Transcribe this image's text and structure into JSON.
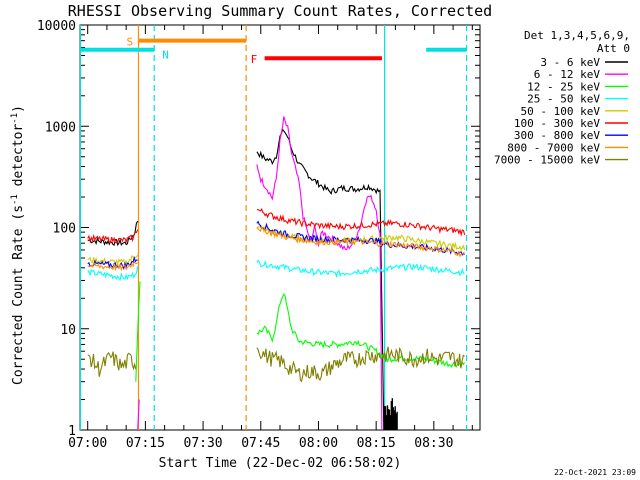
{
  "chart_data": {
    "type": "line",
    "title": "RHESSI Observing Summary Count Rates, Corrected",
    "xlabel": "Start Time (22-Dec-02 06:58:02)",
    "ylabel_main": "Corrected Count Rate (s",
    "ylabel_unit_a": "-1",
    "ylabel_mid": " detector",
    "ylabel_unit_b": "-1",
    "ylabel_end": ")",
    "y_scale": "log",
    "ylim": [
      1,
      10000
    ],
    "xlim_minutes_from_0700": [
      -2,
      102
    ],
    "x_ticks": [
      {
        "m": 0,
        "label": "07:00"
      },
      {
        "m": 15,
        "label": "07:15"
      },
      {
        "m": 30,
        "label": "07:30"
      },
      {
        "m": 45,
        "label": "07:45"
      },
      {
        "m": 60,
        "label": "08:00"
      },
      {
        "m": 75,
        "label": "08:15"
      },
      {
        "m": 90,
        "label": "08:30"
      }
    ],
    "y_ticks": [
      {
        "v": 1,
        "label": "1"
      },
      {
        "v": 10,
        "label": "10"
      },
      {
        "v": 100,
        "label": "100"
      },
      {
        "v": 1000,
        "label": "1000"
      },
      {
        "v": 10000,
        "label": "10000"
      }
    ],
    "legend_header_1": "Det 1,3,4,5,6,9,",
    "legend_header_2": "Att 0",
    "series": [
      {
        "name": "3 - 6 keV",
        "color": "#000000",
        "segments": [
          [
            [
              0,
              75
            ],
            [
              5,
              72
            ],
            [
              10,
              70
            ],
            [
              12,
              85
            ],
            [
              13,
              118
            ]
          ],
          [
            [
              44,
              560
            ],
            [
              46,
              480
            ],
            [
              48,
              450
            ],
            [
              49,
              510
            ],
            [
              50,
              780
            ],
            [
              51,
              920
            ],
            [
              52,
              780
            ],
            [
              53,
              600
            ],
            [
              55,
              420
            ],
            [
              58,
              310
            ],
            [
              61,
              255
            ],
            [
              63,
              225
            ],
            [
              66,
              245
            ],
            [
              70,
              240
            ],
            [
              73,
              255
            ],
            [
              75,
              235
            ],
            [
              76,
              225
            ],
            [
              77,
              1
            ]
          ]
        ]
      },
      {
        "name": "6 - 12 keV",
        "color": "#ff00ff",
        "segments": [
          [
            [
              13,
              1
            ],
            [
              13.4,
              2
            ]
          ],
          [
            [
              44,
              420
            ],
            [
              45,
              300
            ],
            [
              47,
              230
            ],
            [
              48,
              195
            ],
            [
              49,
              300
            ],
            [
              50,
              700
            ],
            [
              51,
              1180
            ],
            [
              52,
              950
            ],
            [
              53,
              540
            ],
            [
              55,
              270
            ],
            [
              56,
              128
            ],
            [
              57,
              95
            ],
            [
              58,
              72
            ],
            [
              59,
              100
            ],
            [
              60,
              68
            ],
            [
              61,
              90
            ],
            [
              63,
              80
            ],
            [
              65,
              70
            ],
            [
              67,
              60
            ],
            [
              69,
              70
            ],
            [
              71,
              105
            ],
            [
              72,
              170
            ],
            [
              73,
              205
            ],
            [
              74,
              190
            ],
            [
              75,
              150
            ],
            [
              76,
              85
            ],
            [
              76.5,
              1
            ]
          ]
        ]
      },
      {
        "name": "12 - 25 keV",
        "color": "#00ff00",
        "segments": [
          [
            [
              12.5,
              3
            ],
            [
              13.2,
              15
            ],
            [
              13.6,
              30
            ]
          ],
          [
            [
              44,
              9
            ],
            [
              46,
              10
            ],
            [
              48,
              8
            ],
            [
              49,
              11
            ],
            [
              50,
              18
            ],
            [
              51,
              23
            ],
            [
              52,
              15
            ],
            [
              53,
              10
            ],
            [
              55,
              7.5
            ],
            [
              60,
              7
            ],
            [
              65,
              7
            ],
            [
              70,
              7.5
            ],
            [
              75,
              6
            ],
            [
              78,
              5
            ],
            [
              82,
              5.2
            ],
            [
              88,
              5
            ],
            [
              94,
              4.5
            ],
            [
              98,
              4.5
            ]
          ]
        ]
      },
      {
        "name": "25 - 50 keV",
        "color": "#00ffff",
        "segments": [
          [
            [
              0,
              36
            ],
            [
              5,
              34
            ],
            [
              10,
              32
            ],
            [
              12,
              34
            ],
            [
              13,
              40
            ]
          ],
          [
            [
              44,
              45
            ],
            [
              50,
              41
            ],
            [
              55,
              38
            ],
            [
              60,
              36
            ],
            [
              65,
              35
            ],
            [
              70,
              37
            ],
            [
              75,
              38
            ],
            [
              80,
              40
            ],
            [
              85,
              41
            ],
            [
              90,
              39
            ],
            [
              95,
              37
            ],
            [
              98,
              36
            ]
          ]
        ]
      },
      {
        "name": "50 - 100 keV",
        "color": "#cccc00",
        "segments": [
          [
            [
              0,
              48
            ],
            [
              5,
              46
            ],
            [
              10,
              45
            ],
            [
              13,
              55
            ]
          ],
          [
            [
              44,
              100
            ],
            [
              48,
              90
            ],
            [
              52,
              82
            ],
            [
              56,
              78
            ],
            [
              60,
              75
            ],
            [
              65,
              73
            ],
            [
              70,
              75
            ],
            [
              75,
              78
            ],
            [
              80,
              80
            ],
            [
              85,
              75
            ],
            [
              90,
              70
            ],
            [
              95,
              66
            ],
            [
              98,
              64
            ]
          ]
        ]
      },
      {
        "name": "100 - 300 keV",
        "color": "#ff0000",
        "segments": [
          [
            [
              0,
              78
            ],
            [
              5,
              76
            ],
            [
              10,
              75
            ],
            [
              12,
              80
            ],
            [
              13,
              100
            ]
          ],
          [
            [
              44,
              150
            ],
            [
              48,
              130
            ],
            [
              52,
              118
            ],
            [
              56,
              110
            ],
            [
              60,
              105
            ],
            [
              65,
              102
            ],
            [
              70,
              104
            ],
            [
              75,
              108
            ],
            [
              80,
              110
            ],
            [
              85,
              105
            ],
            [
              90,
              98
            ],
            [
              95,
              94
            ],
            [
              98,
              90
            ]
          ]
        ]
      },
      {
        "name": "300 - 800 keV",
        "color": "#0000ff",
        "segments": [
          [
            [
              0,
              44
            ],
            [
              5,
              43
            ],
            [
              10,
              42
            ],
            [
              13,
              50
            ]
          ],
          [
            [
              44,
              110
            ],
            [
              48,
              95
            ],
            [
              52,
              85
            ],
            [
              56,
              80
            ],
            [
              60,
              77
            ],
            [
              65,
              76
            ],
            [
              70,
              75
            ],
            [
              75,
              74
            ],
            [
              78,
              68
            ],
            [
              82,
              66
            ],
            [
              86,
              64
            ],
            [
              90,
              62
            ],
            [
              95,
              58
            ],
            [
              98,
              56
            ]
          ]
        ]
      },
      {
        "name": "800 - 7000 keV",
        "color": "#ff8c00",
        "segments": [
          [
            [
              0,
              42
            ],
            [
              5,
              41
            ],
            [
              10,
              40
            ],
            [
              13,
              47
            ]
          ],
          [
            [
              44,
              100
            ],
            [
              48,
              88
            ],
            [
              52,
              80
            ],
            [
              56,
              75
            ],
            [
              60,
              72
            ],
            [
              65,
              72
            ],
            [
              70,
              73
            ],
            [
              75,
              70
            ],
            [
              80,
              68
            ],
            [
              85,
              65
            ],
            [
              90,
              62
            ],
            [
              95,
              58
            ],
            [
              98,
              54
            ]
          ]
        ]
      },
      {
        "name": "7000 - 15000 keV",
        "color": "#808000",
        "segments": [
          [
            [
              0,
              5.5
            ],
            [
              3,
              4
            ],
            [
              6,
              5.3
            ],
            [
              9,
              4.2
            ],
            [
              11,
              5
            ],
            [
              12.5,
              4.5
            ]
          ],
          [
            [
              44,
              6.5
            ],
            [
              46,
              5.5
            ],
            [
              48,
              5
            ],
            [
              50,
              4.8
            ],
            [
              52,
              4.2
            ],
            [
              55,
              3.6
            ],
            [
              58,
              3.8
            ],
            [
              61,
              3.6
            ],
            [
              64,
              4.4
            ],
            [
              67,
              5
            ],
            [
              70,
              5
            ],
            [
              73,
              5.5
            ],
            [
              76,
              5.4
            ],
            [
              79,
              5.6
            ],
            [
              82,
              5.3
            ],
            [
              85,
              5
            ],
            [
              88,
              5.4
            ],
            [
              91,
              5
            ],
            [
              94,
              5.3
            ],
            [
              97,
              4.8
            ],
            [
              98,
              4.9
            ]
          ]
        ]
      }
    ],
    "status_bars": [
      {
        "label": "S",
        "color": "#ff8c00",
        "start": 13.2,
        "end": 41.2,
        "value": 7000
      },
      {
        "label": "N",
        "color": "#00e0e0",
        "start": -2,
        "end": 17.3,
        "value": 5700
      },
      {
        "label": "F",
        "color": "#ff0000",
        "start": 46,
        "end": 76.5,
        "value": 4700
      }
    ],
    "extra_cyan_bar": {
      "start": 88,
      "end": 98.5,
      "value": 5700
    },
    "markers": [
      {
        "m": -1.9,
        "style": "solid",
        "color": "#00e0e0"
      },
      {
        "m": 13.2,
        "style": "solid",
        "color": "#ff8c00"
      },
      {
        "m": 17.3,
        "style": "dashed",
        "color": "#00e0e0"
      },
      {
        "m": 41.2,
        "style": "dashed",
        "color": "#ff8c00"
      },
      {
        "m": 77.2,
        "style": "solid",
        "color": "#00e0e0"
      },
      {
        "m": 98.5,
        "style": "dashed",
        "color": "#00e0e0"
      }
    ]
  },
  "footer_timestamp": "22-Oct-2021 23:09"
}
